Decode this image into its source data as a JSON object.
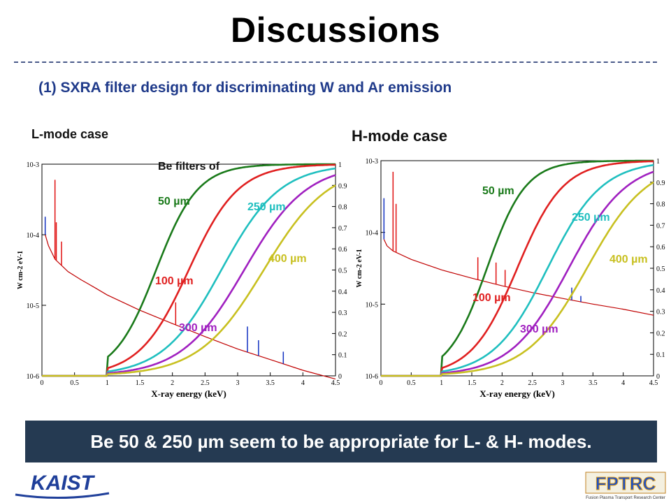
{
  "slide": {
    "title": "Discussions",
    "subtitle": "(1) SXRA filter design for discriminating W and Ar emission",
    "banner": "Be 50 & 250 µm seem to be appropriate for L- & H- modes.",
    "logo_left": "KAIST",
    "logo_right": "FPTRC",
    "logo_right_caption": "Fusion Plasma Transport Research Center"
  },
  "chart_data": [
    {
      "type": "line",
      "title": "L-mode case",
      "annotation": "Be filters of",
      "xlabel": "X-ray energy (keV)",
      "ylabel": "W cm-2 eV-1",
      "xlim": [
        0,
        4.5
      ],
      "x_ticks": [
        "0",
        "0.5",
        "1",
        "1.5",
        "2",
        "2.5",
        "3",
        "3.5",
        "4",
        "4.5"
      ],
      "y_left_log": true,
      "y_left_ticks": [
        "10-3",
        "10-4",
        "10-5",
        "10-6"
      ],
      "y_left_lim": [
        1e-06,
        0.001
      ],
      "y_right_lim": [
        0,
        1
      ],
      "y_right_ticks": [
        "0",
        "0.1",
        "0.2",
        "0.3",
        "0.4",
        "0.5",
        "0.6",
        "0.7",
        "0.8",
        "0.9",
        "1"
      ],
      "spectrum_points": [
        [
          0.05,
          0.0001
        ],
        [
          0.1,
          7e-05
        ],
        [
          0.2,
          4.5e-05
        ],
        [
          0.4,
          3e-05
        ],
        [
          0.6,
          2.3e-05
        ],
        [
          0.8,
          1.8e-05
        ],
        [
          1.0,
          1.4e-05
        ],
        [
          1.5,
          8.5e-06
        ],
        [
          2.0,
          5.5e-06
        ],
        [
          2.5,
          3.6e-06
        ],
        [
          3.0,
          2.4e-06
        ],
        [
          3.5,
          1.7e-06
        ],
        [
          4.0,
          1.2e-06
        ],
        [
          4.5,
          9e-07
        ]
      ],
      "spectrum_lines": [
        [
          0.2,
          0.0006
        ],
        [
          0.22,
          0.00015
        ],
        [
          0.3,
          8e-05
        ],
        [
          0.05,
          0.00018
        ],
        [
          2.05,
          1.1e-05
        ],
        [
          3.15,
          5e-06
        ],
        [
          3.32,
          3.2e-06
        ],
        [
          3.7,
          2.2e-06
        ]
      ],
      "series": [
        {
          "name": "50 µm",
          "color": "#1a7a1a",
          "e50": 1.75,
          "width": 0.32
        },
        {
          "name": "100 µm",
          "color": "#e02020",
          "e50": 2.25,
          "width": 0.38
        },
        {
          "name": "250 µm",
          "color": "#1fbfbf",
          "e50": 2.75,
          "width": 0.45
        },
        {
          "name": "300 µm",
          "color": "#a020c0",
          "e50": 3.1,
          "width": 0.48
        },
        {
          "name": "400 µm",
          "color": "#c8c020",
          "e50": 3.4,
          "width": 0.5
        }
      ]
    },
    {
      "type": "line",
      "title": "H-mode case",
      "xlabel": "X-ray energy (keV)",
      "ylabel": "W cm-2 eV-1",
      "xlim": [
        0,
        4.5
      ],
      "x_ticks": [
        "0",
        "0.5",
        "1",
        "1.5",
        "2",
        "2.5",
        "3",
        "3.5",
        "4",
        "4.5"
      ],
      "y_left_log": true,
      "y_left_ticks": [
        "10-3",
        "10-4",
        "10-5",
        "10-6"
      ],
      "y_left_lim": [
        1e-06,
        0.001
      ],
      "y_right_lim": [
        0,
        1
      ],
      "y_right_ticks": [
        "0",
        "0.1",
        "0.2",
        "0.3",
        "0.4",
        "0.5",
        "0.6",
        "0.7",
        "0.8",
        "0.9",
        "1"
      ],
      "spectrum_points": [
        [
          0.05,
          8e-05
        ],
        [
          0.1,
          6.5e-05
        ],
        [
          0.2,
          5.5e-05
        ],
        [
          0.5,
          4.2e-05
        ],
        [
          1.0,
          3e-05
        ],
        [
          1.5,
          2.3e-05
        ],
        [
          2.0,
          1.8e-05
        ],
        [
          2.5,
          1.45e-05
        ],
        [
          3.0,
          1.2e-05
        ],
        [
          3.5,
          1e-05
        ],
        [
          4.0,
          8.5e-06
        ],
        [
          4.5,
          7e-06
        ]
      ],
      "spectrum_lines": [
        [
          0.2,
          0.0007
        ],
        [
          0.25,
          0.00025
        ],
        [
          0.05,
          0.0003
        ],
        [
          1.6,
          4.5e-05
        ],
        [
          1.9,
          3.8e-05
        ],
        [
          2.05,
          3e-05
        ],
        [
          3.15,
          1.7e-05
        ],
        [
          3.3,
          1.3e-05
        ]
      ],
      "series": [
        {
          "name": "50 µm",
          "color": "#1a7a1a",
          "e50": 1.75,
          "width": 0.32
        },
        {
          "name": "100 µm",
          "color": "#e02020",
          "e50": 2.25,
          "width": 0.38
        },
        {
          "name": "250 µm",
          "color": "#1fbfbf",
          "e50": 2.75,
          "width": 0.45
        },
        {
          "name": "300 µm",
          "color": "#a020c0",
          "e50": 3.1,
          "width": 0.48
        },
        {
          "name": "400 µm",
          "color": "#c8c020",
          "e50": 3.4,
          "width": 0.5
        }
      ]
    }
  ]
}
